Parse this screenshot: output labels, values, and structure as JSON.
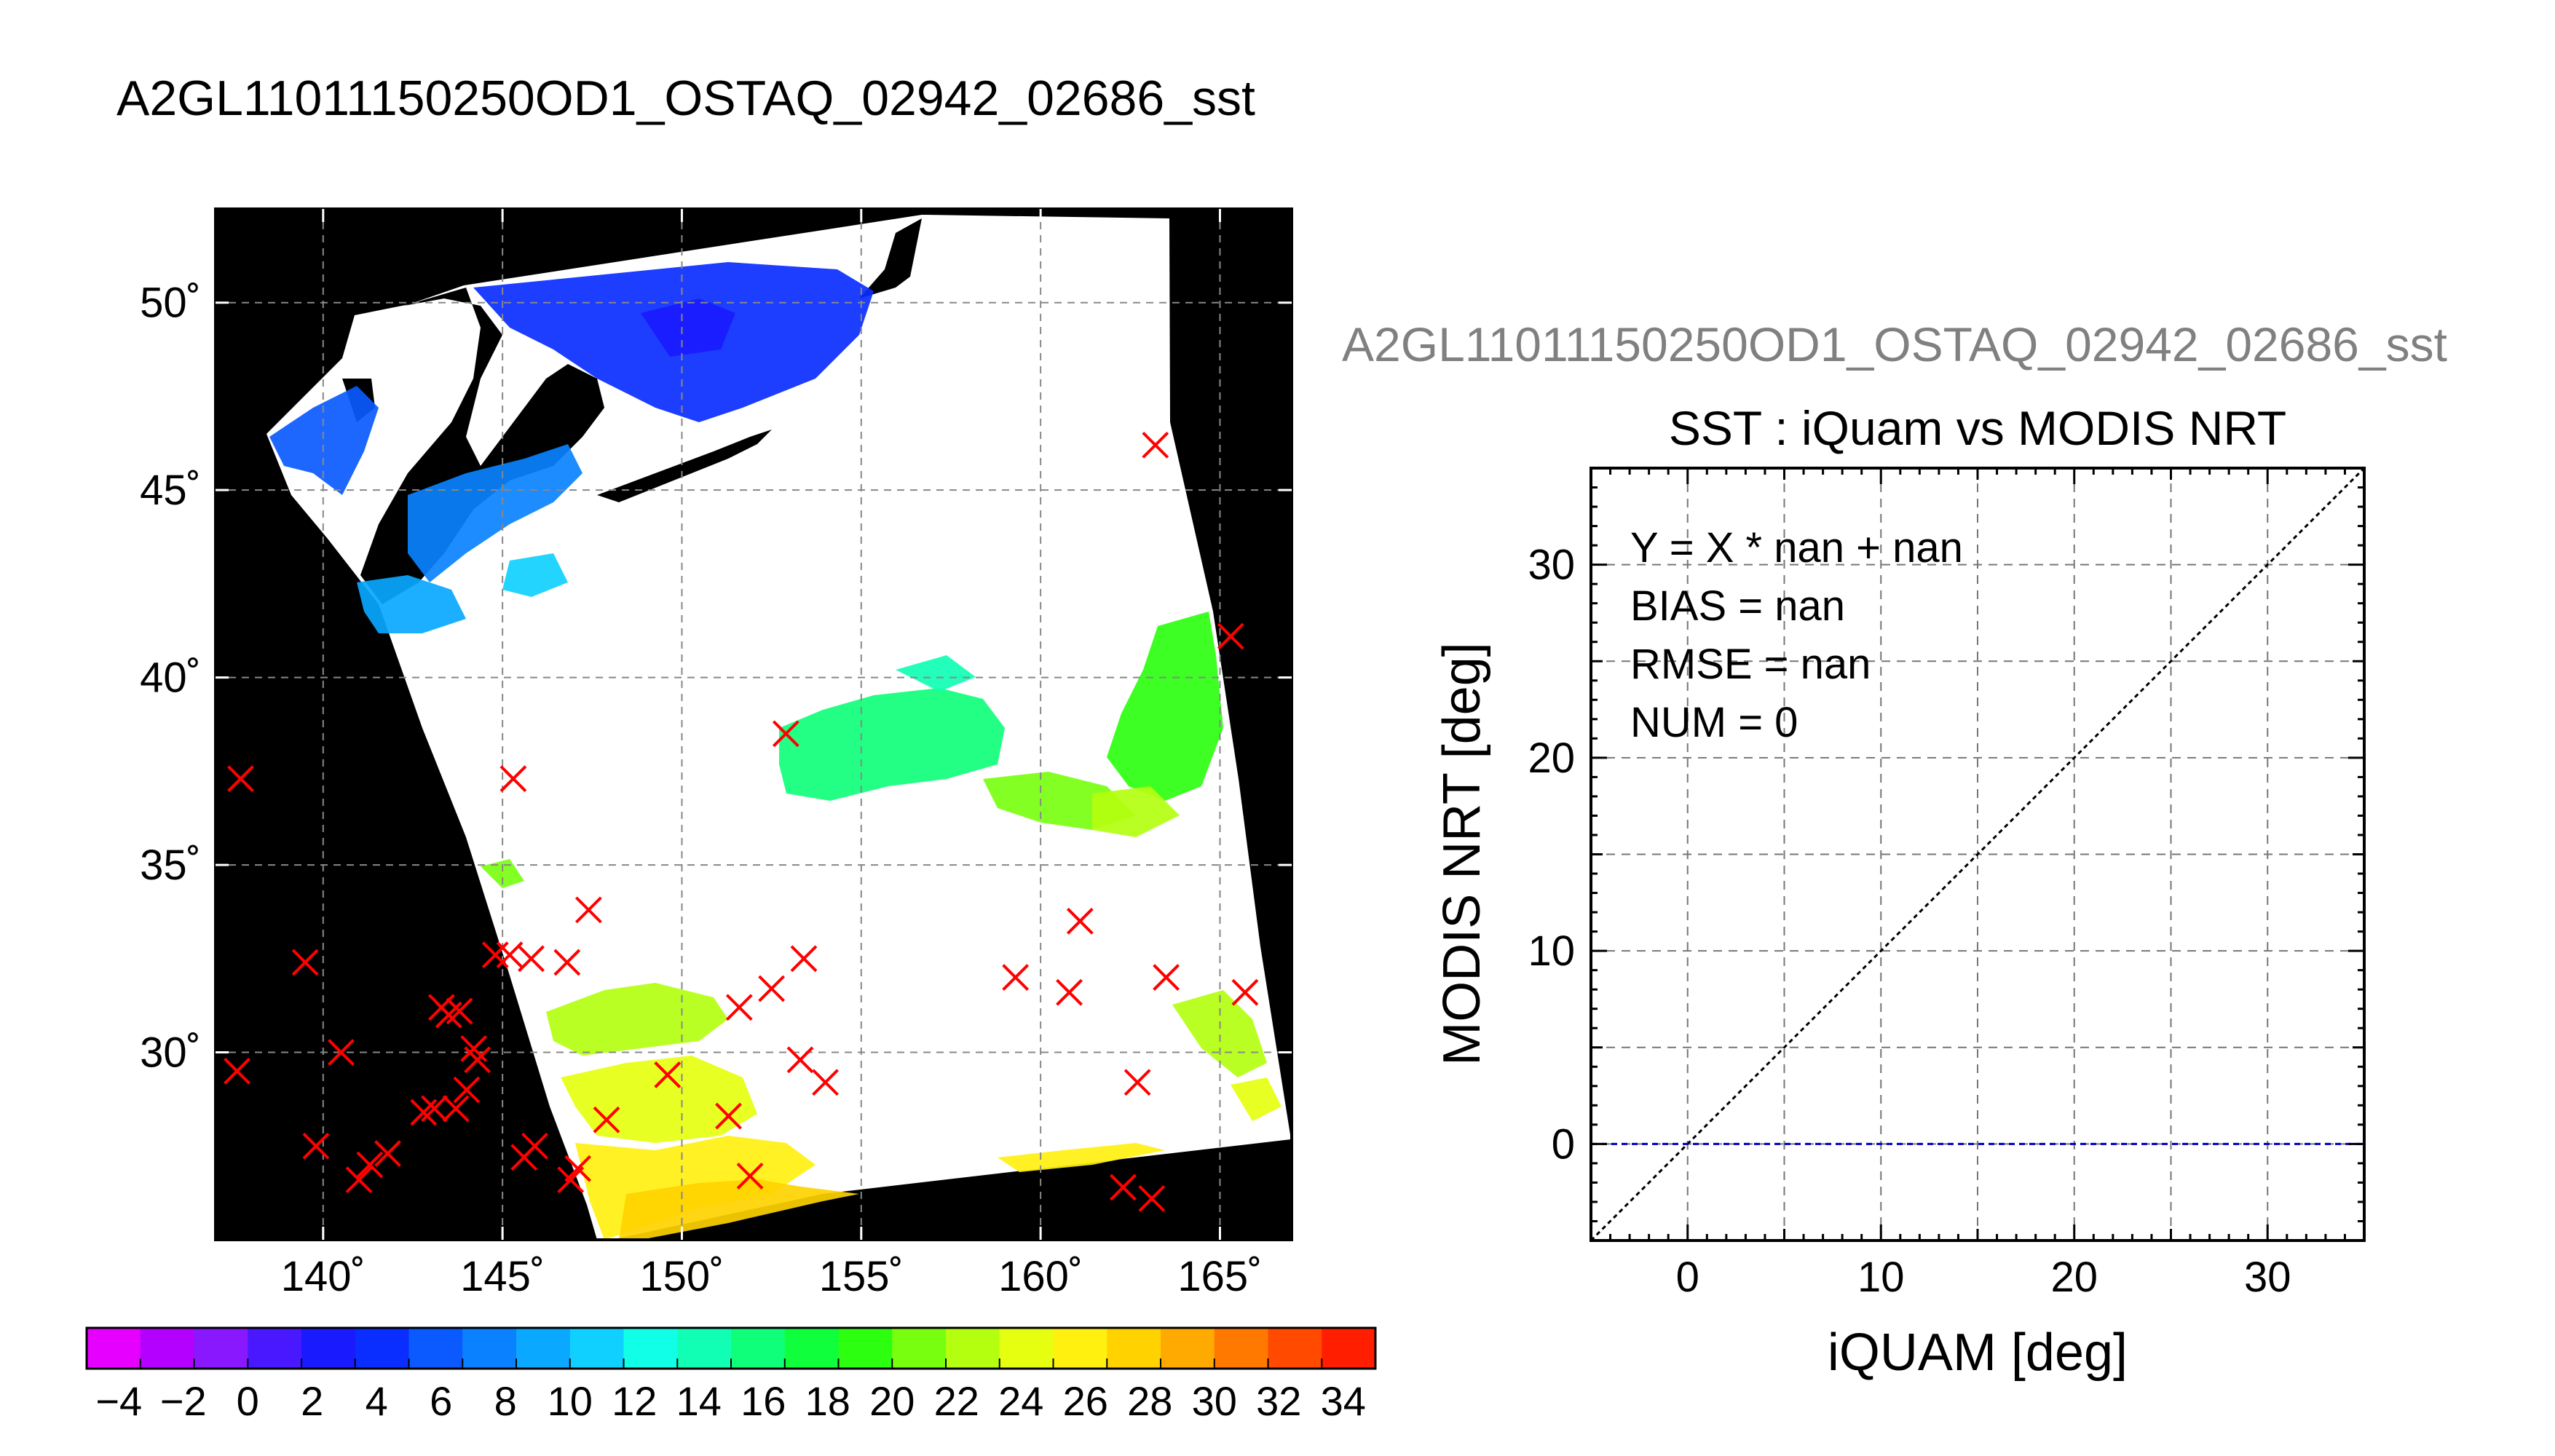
{
  "page_title": "A2GL11011150250OD1_OSTAQ_02942_02686_sst",
  "chart_data": [
    {
      "type": "map",
      "title": "A2GL11011150250OD1_OSTAQ_02942_02686_sst",
      "xlim": [
        137,
        167
      ],
      "ylim": [
        25,
        52.5
      ],
      "x_ticks": [
        140,
        145,
        150,
        155,
        160,
        165
      ],
      "x_tick_labels": [
        "140˚",
        "145˚",
        "150˚",
        "155˚",
        "160˚",
        "165˚"
      ],
      "y_ticks": [
        30,
        35,
        40,
        45,
        50
      ],
      "y_tick_labels": [
        "30˚",
        "35˚",
        "40˚",
        "45˚",
        "50˚"
      ],
      "grid": true,
      "background_color": "#000000",
      "swath_color": "#ffffff",
      "marker_color": "#ff0000",
      "marker_symbol": "x",
      "match_points": [
        {
          "lon": 137.7,
          "lat": 37.3
        },
        {
          "lon": 137.6,
          "lat": 29.5
        },
        {
          "lon": 139.5,
          "lat": 32.4
        },
        {
          "lon": 139.8,
          "lat": 27.5
        },
        {
          "lon": 140.5,
          "lat": 30.0
        },
        {
          "lon": 141.0,
          "lat": 26.6
        },
        {
          "lon": 141.3,
          "lat": 27.0
        },
        {
          "lon": 141.8,
          "lat": 27.3
        },
        {
          "lon": 142.8,
          "lat": 28.4
        },
        {
          "lon": 143.1,
          "lat": 28.5
        },
        {
          "lon": 143.3,
          "lat": 31.2
        },
        {
          "lon": 143.5,
          "lat": 31.0
        },
        {
          "lon": 143.8,
          "lat": 31.1
        },
        {
          "lon": 143.7,
          "lat": 28.5
        },
        {
          "lon": 144.0,
          "lat": 29.0
        },
        {
          "lon": 144.2,
          "lat": 30.1
        },
        {
          "lon": 144.3,
          "lat": 29.8
        },
        {
          "lon": 144.8,
          "lat": 32.6
        },
        {
          "lon": 145.2,
          "lat": 32.6
        },
        {
          "lon": 145.3,
          "lat": 37.3
        },
        {
          "lon": 145.8,
          "lat": 32.5
        },
        {
          "lon": 145.6,
          "lat": 27.2
        },
        {
          "lon": 145.9,
          "lat": 27.5
        },
        {
          "lon": 146.8,
          "lat": 32.4
        },
        {
          "lon": 147.1,
          "lat": 26.9
        },
        {
          "lon": 146.9,
          "lat": 26.6
        },
        {
          "lon": 147.4,
          "lat": 33.8
        },
        {
          "lon": 147.9,
          "lat": 28.2
        },
        {
          "lon": 149.6,
          "lat": 29.4
        },
        {
          "lon": 151.3,
          "lat": 28.3
        },
        {
          "lon": 151.6,
          "lat": 31.2
        },
        {
          "lon": 151.9,
          "lat": 26.7
        },
        {
          "lon": 152.5,
          "lat": 31.7
        },
        {
          "lon": 152.9,
          "lat": 38.5
        },
        {
          "lon": 153.3,
          "lat": 29.8
        },
        {
          "lon": 153.4,
          "lat": 32.5
        },
        {
          "lon": 154.0,
          "lat": 29.2
        },
        {
          "lon": 159.3,
          "lat": 32.0
        },
        {
          "lon": 160.8,
          "lat": 31.6
        },
        {
          "lon": 161.1,
          "lat": 33.5
        },
        {
          "lon": 162.3,
          "lat": 26.4
        },
        {
          "lon": 162.7,
          "lat": 29.2
        },
        {
          "lon": 163.1,
          "lat": 26.1
        },
        {
          "lon": 163.2,
          "lat": 46.2
        },
        {
          "lon": 163.5,
          "lat": 32.0
        },
        {
          "lon": 165.3,
          "lat": 41.1
        },
        {
          "lon": 165.7,
          "lat": 31.6
        }
      ]
    },
    {
      "type": "colorbar",
      "min": -5,
      "max": 35,
      "step": 2,
      "tick_values": [
        -4,
        -2,
        0,
        2,
        4,
        6,
        8,
        10,
        12,
        14,
        16,
        18,
        20,
        22,
        24,
        26,
        28,
        30,
        32,
        34
      ],
      "tick_labels": [
        "−4",
        "−2",
        "0",
        "2",
        "4",
        "6",
        "8",
        "10",
        "12",
        "14",
        "16",
        "18",
        "20",
        "22",
        "24",
        "26",
        "28",
        "30",
        "32",
        "34"
      ],
      "colors": [
        "#e600ff",
        "#b400ff",
        "#8a18ff",
        "#4a18ff",
        "#1a1aff",
        "#0a2eff",
        "#0a5aff",
        "#0a82ff",
        "#0aa8ff",
        "#10d0ff",
        "#10ffe6",
        "#10ffb4",
        "#10ff7a",
        "#10ff3c",
        "#2cff10",
        "#78ff10",
        "#b4ff10",
        "#e6ff10",
        "#fff010",
        "#ffd200",
        "#ffaa00",
        "#ff7800",
        "#ff4a00",
        "#ff1e00"
      ]
    },
    {
      "type": "scatter",
      "subtitle": "A2GL11011150250OD1_OSTAQ_02942_02686_sst",
      "title": "SST : iQuam vs MODIS NRT",
      "xlabel": "iQUAM [deg]",
      "ylabel": "MODIS NRT [deg]",
      "xlim": [
        -5,
        35
      ],
      "ylim": [
        -5,
        35
      ],
      "x_ticks": [
        0,
        10,
        20,
        30
      ],
      "y_ticks": [
        0,
        10,
        20,
        30
      ],
      "grid": true,
      "points": [],
      "reference_lines": [
        {
          "kind": "identity",
          "from": [
            -5,
            -5
          ],
          "to": [
            35,
            35
          ],
          "color": "#000000"
        },
        {
          "kind": "zero",
          "from": [
            -5,
            0
          ],
          "to": [
            35,
            0
          ],
          "color": "#0000c8"
        }
      ],
      "stats": [
        "Y = X * nan + nan",
        "BIAS = nan",
        "RMSE = nan",
        "NUM = 0"
      ]
    }
  ]
}
